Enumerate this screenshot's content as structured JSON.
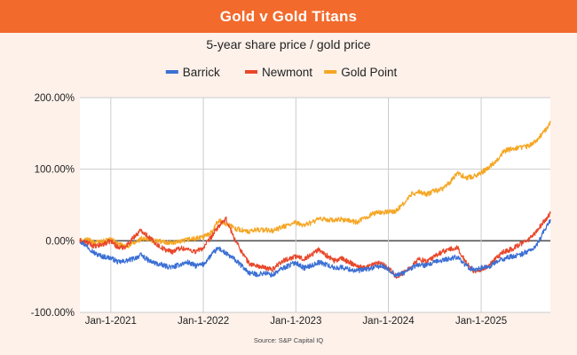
{
  "header": {
    "title": "Gold v Gold Titans",
    "banner_color": "#f26a2c"
  },
  "chart_data": {
    "type": "line",
    "subtitle": "5-year share price / gold price",
    "source": "Source: S&P Capital IQ",
    "xlabel": "",
    "ylabel": "",
    "legend_position": "top-center",
    "grid": true,
    "x_range": [
      "2020-09-01",
      "2025-10-01"
    ],
    "ylim": [
      -100,
      200
    ],
    "y_ticks": [
      {
        "value": 200,
        "label": "200.00%"
      },
      {
        "value": 100,
        "label": "100.00%"
      },
      {
        "value": 0,
        "label": "0.00%"
      },
      {
        "value": -100,
        "label": "-100.00%"
      }
    ],
    "x_ticks": [
      {
        "date": "2021-01-01",
        "label": "Jan-1-2021"
      },
      {
        "date": "2022-01-01",
        "label": "Jan-1-2022"
      },
      {
        "date": "2023-01-01",
        "label": "Jan-1-2023"
      },
      {
        "date": "2024-01-01",
        "label": "Jan-1-2024"
      },
      {
        "date": "2025-01-01",
        "label": "Jan-1-2025"
      }
    ],
    "series": [
      {
        "name": "Barrick",
        "color": "#3b6fd4",
        "points": [
          [
            "2020-09-01",
            0
          ],
          [
            "2020-10-01",
            -8
          ],
          [
            "2020-11-01",
            -18
          ],
          [
            "2020-12-01",
            -22
          ],
          [
            "2021-01-01",
            -24
          ],
          [
            "2021-02-01",
            -30
          ],
          [
            "2021-03-01",
            -28
          ],
          [
            "2021-04-01",
            -25
          ],
          [
            "2021-05-01",
            -20
          ],
          [
            "2021-06-01",
            -28
          ],
          [
            "2021-07-01",
            -32
          ],
          [
            "2021-08-01",
            -35
          ],
          [
            "2021-09-01",
            -37
          ],
          [
            "2021-10-01",
            -33
          ],
          [
            "2021-11-01",
            -30
          ],
          [
            "2021-12-01",
            -35
          ],
          [
            "2022-01-01",
            -33
          ],
          [
            "2022-02-01",
            -20
          ],
          [
            "2022-03-01",
            -10
          ],
          [
            "2022-04-01",
            -18
          ],
          [
            "2022-05-01",
            -25
          ],
          [
            "2022-06-01",
            -35
          ],
          [
            "2022-07-01",
            -45
          ],
          [
            "2022-08-01",
            -47
          ],
          [
            "2022-09-01",
            -45
          ],
          [
            "2022-10-01",
            -48
          ],
          [
            "2022-11-01",
            -40
          ],
          [
            "2022-12-01",
            -35
          ],
          [
            "2023-01-01",
            -30
          ],
          [
            "2023-02-01",
            -38
          ],
          [
            "2023-03-01",
            -35
          ],
          [
            "2023-04-01",
            -30
          ],
          [
            "2023-05-01",
            -33
          ],
          [
            "2023-06-01",
            -38
          ],
          [
            "2023-07-01",
            -37
          ],
          [
            "2023-08-01",
            -40
          ],
          [
            "2023-09-01",
            -42
          ],
          [
            "2023-10-01",
            -40
          ],
          [
            "2023-11-01",
            -38
          ],
          [
            "2023-12-01",
            -35
          ],
          [
            "2024-01-01",
            -40
          ],
          [
            "2024-02-01",
            -48
          ],
          [
            "2024-03-01",
            -45
          ],
          [
            "2024-04-01",
            -38
          ],
          [
            "2024-05-01",
            -33
          ],
          [
            "2024-06-01",
            -35
          ],
          [
            "2024-07-01",
            -30
          ],
          [
            "2024-08-01",
            -27
          ],
          [
            "2024-09-01",
            -25
          ],
          [
            "2024-10-01",
            -22
          ],
          [
            "2024-11-01",
            -35
          ],
          [
            "2024-12-01",
            -40
          ],
          [
            "2025-01-01",
            -38
          ],
          [
            "2025-02-01",
            -36
          ],
          [
            "2025-03-01",
            -30
          ],
          [
            "2025-04-01",
            -25
          ],
          [
            "2025-05-01",
            -22
          ],
          [
            "2025-06-01",
            -20
          ],
          [
            "2025-07-01",
            -15
          ],
          [
            "2025-08-01",
            -10
          ],
          [
            "2025-09-01",
            10
          ],
          [
            "2025-10-01",
            30
          ]
        ]
      },
      {
        "name": "Newmont",
        "color": "#e8472a",
        "points": [
          [
            "2020-09-01",
            0
          ],
          [
            "2020-10-01",
            -3
          ],
          [
            "2020-11-01",
            -8
          ],
          [
            "2020-12-01",
            -5
          ],
          [
            "2021-01-01",
            0
          ],
          [
            "2021-02-01",
            -10
          ],
          [
            "2021-03-01",
            -8
          ],
          [
            "2021-04-01",
            5
          ],
          [
            "2021-05-01",
            15
          ],
          [
            "2021-06-01",
            5
          ],
          [
            "2021-07-01",
            -5
          ],
          [
            "2021-08-01",
            -12
          ],
          [
            "2021-09-01",
            -15
          ],
          [
            "2021-10-01",
            -10
          ],
          [
            "2021-11-01",
            -12
          ],
          [
            "2021-12-01",
            -15
          ],
          [
            "2022-01-01",
            -10
          ],
          [
            "2022-02-01",
            5
          ],
          [
            "2022-03-01",
            20
          ],
          [
            "2022-04-01",
            30
          ],
          [
            "2022-05-01",
            5
          ],
          [
            "2022-06-01",
            -15
          ],
          [
            "2022-07-01",
            -32
          ],
          [
            "2022-08-01",
            -35
          ],
          [
            "2022-09-01",
            -38
          ],
          [
            "2022-10-01",
            -40
          ],
          [
            "2022-11-01",
            -30
          ],
          [
            "2022-12-01",
            -25
          ],
          [
            "2023-01-01",
            -22
          ],
          [
            "2023-02-01",
            -25
          ],
          [
            "2023-03-01",
            -20
          ],
          [
            "2023-04-01",
            -12
          ],
          [
            "2023-05-01",
            -20
          ],
          [
            "2023-06-01",
            -28
          ],
          [
            "2023-07-01",
            -25
          ],
          [
            "2023-08-01",
            -30
          ],
          [
            "2023-09-01",
            -35
          ],
          [
            "2023-10-01",
            -38
          ],
          [
            "2023-11-01",
            -33
          ],
          [
            "2023-12-01",
            -30
          ],
          [
            "2024-01-01",
            -38
          ],
          [
            "2024-02-01",
            -50
          ],
          [
            "2024-03-01",
            -45
          ],
          [
            "2024-04-01",
            -35
          ],
          [
            "2024-05-01",
            -25
          ],
          [
            "2024-06-01",
            -30
          ],
          [
            "2024-07-01",
            -22
          ],
          [
            "2024-08-01",
            -15
          ],
          [
            "2024-09-01",
            -12
          ],
          [
            "2024-10-01",
            -10
          ],
          [
            "2024-11-01",
            -30
          ],
          [
            "2024-12-01",
            -42
          ],
          [
            "2025-01-01",
            -40
          ],
          [
            "2025-02-01",
            -35
          ],
          [
            "2025-03-01",
            -25
          ],
          [
            "2025-04-01",
            -15
          ],
          [
            "2025-05-01",
            -12
          ],
          [
            "2025-06-01",
            -5
          ],
          [
            "2025-07-01",
            0
          ],
          [
            "2025-08-01",
            10
          ],
          [
            "2025-09-01",
            25
          ],
          [
            "2025-10-01",
            38
          ]
        ]
      },
      {
        "name": "Gold Point",
        "color": "#f5a623",
        "points": [
          [
            "2020-09-01",
            0
          ],
          [
            "2020-10-01",
            1
          ],
          [
            "2020-11-01",
            -2
          ],
          [
            "2020-12-01",
            -1
          ],
          [
            "2021-01-01",
            2
          ],
          [
            "2021-02-01",
            -5
          ],
          [
            "2021-03-01",
            -8
          ],
          [
            "2021-04-01",
            -4
          ],
          [
            "2021-05-01",
            3
          ],
          [
            "2021-06-01",
            1
          ],
          [
            "2021-07-01",
            0
          ],
          [
            "2021-08-01",
            -2
          ],
          [
            "2021-09-01",
            -3
          ],
          [
            "2021-10-01",
            -2
          ],
          [
            "2021-11-01",
            2
          ],
          [
            "2021-12-01",
            3
          ],
          [
            "2022-01-01",
            5
          ],
          [
            "2022-02-01",
            12
          ],
          [
            "2022-03-01",
            28
          ],
          [
            "2022-04-01",
            24
          ],
          [
            "2022-05-01",
            18
          ],
          [
            "2022-06-01",
            15
          ],
          [
            "2022-07-01",
            12
          ],
          [
            "2022-08-01",
            16
          ],
          [
            "2022-09-01",
            15
          ],
          [
            "2022-10-01",
            14
          ],
          [
            "2022-11-01",
            18
          ],
          [
            "2022-12-01",
            22
          ],
          [
            "2023-01-01",
            25
          ],
          [
            "2023-02-01",
            22
          ],
          [
            "2023-03-01",
            25
          ],
          [
            "2023-04-01",
            30
          ],
          [
            "2023-05-01",
            30
          ],
          [
            "2023-06-01",
            28
          ],
          [
            "2023-07-01",
            30
          ],
          [
            "2023-08-01",
            28
          ],
          [
            "2023-09-01",
            26
          ],
          [
            "2023-10-01",
            32
          ],
          [
            "2023-11-01",
            38
          ],
          [
            "2023-12-01",
            40
          ],
          [
            "2024-01-01",
            40
          ],
          [
            "2024-02-01",
            42
          ],
          [
            "2024-03-01",
            52
          ],
          [
            "2024-04-01",
            65
          ],
          [
            "2024-05-01",
            68
          ],
          [
            "2024-06-01",
            65
          ],
          [
            "2024-07-01",
            70
          ],
          [
            "2024-08-01",
            72
          ],
          [
            "2024-09-01",
            82
          ],
          [
            "2024-10-01",
            95
          ],
          [
            "2024-11-01",
            88
          ],
          [
            "2024-12-01",
            90
          ],
          [
            "2025-01-01",
            95
          ],
          [
            "2025-02-01",
            103
          ],
          [
            "2025-03-01",
            112
          ],
          [
            "2025-04-01",
            125
          ],
          [
            "2025-05-01",
            128
          ],
          [
            "2025-06-01",
            130
          ],
          [
            "2025-07-01",
            132
          ],
          [
            "2025-08-01",
            138
          ],
          [
            "2025-09-01",
            150
          ],
          [
            "2025-10-01",
            165
          ]
        ]
      }
    ]
  }
}
